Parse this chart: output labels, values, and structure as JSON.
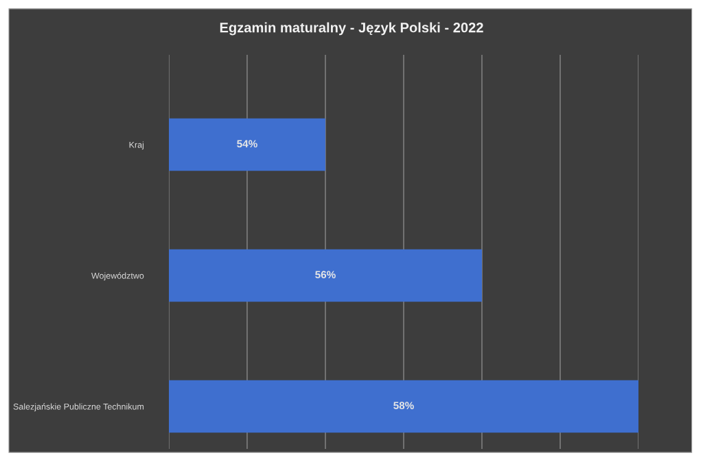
{
  "chart_data": {
    "type": "bar",
    "orientation": "horizontal",
    "title": "Egzamin maturalny - Język Polski - 2022",
    "categories": [
      "Kraj",
      "Województwo",
      "Salezjańskie Publiczne Technikum"
    ],
    "values": [
      54,
      56,
      58
    ],
    "value_labels": [
      "54%",
      "56%",
      "58%"
    ],
    "color": "#3f6fcf",
    "xlim": [
      52,
      58
    ],
    "xticks": [
      {
        "value": 52,
        "label": null
      },
      {
        "value": 53,
        "label": null
      },
      {
        "value": 54,
        "label": null
      },
      {
        "value": 55,
        "label": null
      },
      {
        "value": 56,
        "label": null
      },
      {
        "value": 57,
        "label": null
      },
      {
        "value": 58,
        "label": null
      }
    ],
    "grid": "x",
    "tick_labels": "y"
  }
}
